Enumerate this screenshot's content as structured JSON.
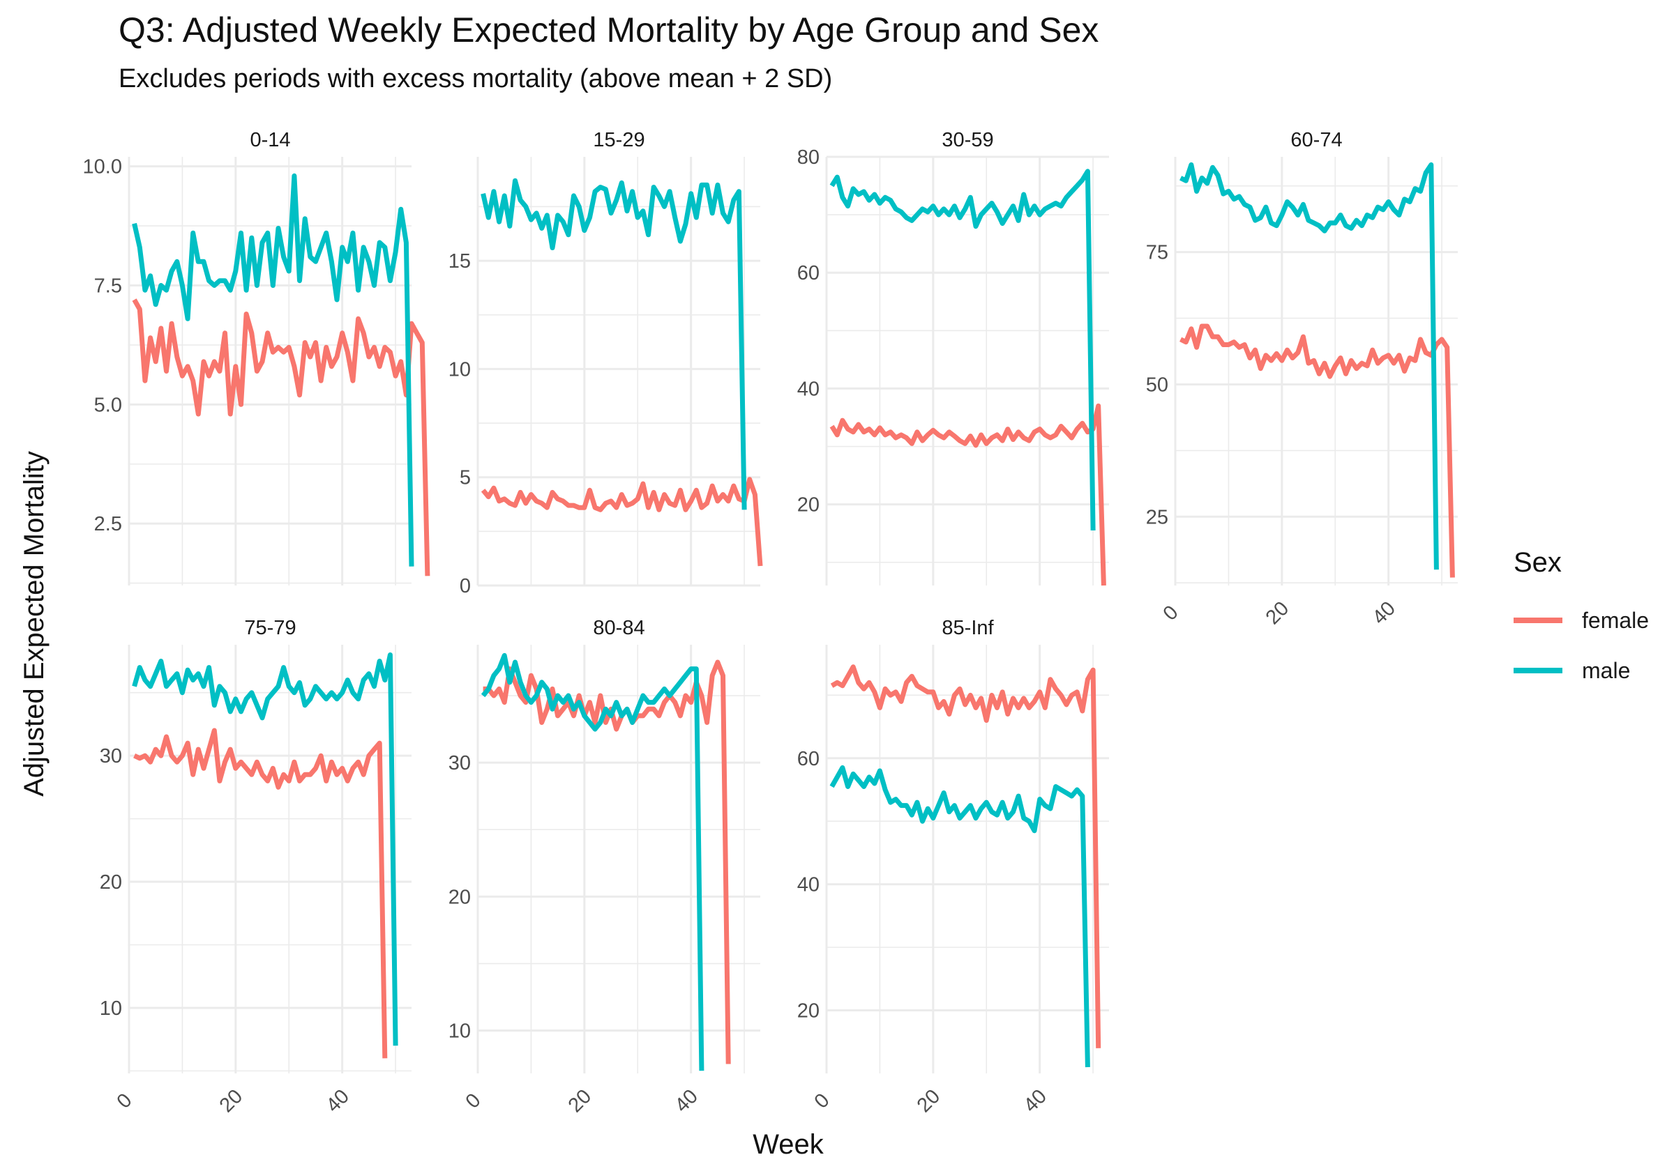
{
  "title": "Q3: Adjusted Weekly Expected Mortality by Age Group and Sex",
  "subtitle": "Excludes periods with excess mortality (above mean + 2 SD)",
  "colors": {
    "female": "#F8766D",
    "male": "#00BFC4",
    "grid": "#EBEBEB"
  },
  "chart_data": {
    "type": "line",
    "facet_by": "Age group",
    "xlabel": "Week",
    "ylabel": "Adjusted Expected Mortality",
    "xlim": [
      0,
      53
    ],
    "xticks": [
      "0",
      "20",
      "40"
    ],
    "legend": {
      "title": "Sex",
      "position": "right",
      "entries": [
        "female",
        "male"
      ]
    },
    "grid": true,
    "panels": [
      {
        "label": "0-14",
        "ylim": [
          1.2,
          10.2
        ],
        "yticks": [
          "2.5",
          "5.0",
          "7.5",
          "10.0"
        ],
        "series": [
          {
            "name": "female",
            "x0": 1,
            "values": [
              7.2,
              7.0,
              5.5,
              6.4,
              5.9,
              6.6,
              5.7,
              6.7,
              6.0,
              5.6,
              5.8,
              5.5,
              4.8,
              5.9,
              5.6,
              5.9,
              5.7,
              6.5,
              4.8,
              5.8,
              5.0,
              6.9,
              6.5,
              5.7,
              5.9,
              6.5,
              6.1,
              6.2,
              6.1,
              6.2,
              5.8,
              5.2,
              6.3,
              6.0,
              6.3,
              5.5,
              6.2,
              5.8,
              6.0,
              6.5,
              6.1,
              5.5,
              6.8,
              6.5,
              6.0,
              6.2,
              5.8,
              6.2,
              6.1,
              5.6,
              5.9,
              5.2,
              6.7,
              6.5,
              6.3,
              1.4
            ]
          },
          {
            "name": "male",
            "x0": 1,
            "values": [
              8.8,
              8.3,
              7.4,
              7.7,
              7.1,
              7.5,
              7.4,
              7.8,
              8.0,
              7.5,
              6.8,
              8.6,
              8.0,
              8.0,
              7.6,
              7.5,
              7.6,
              7.6,
              7.4,
              7.8,
              8.6,
              7.4,
              8.5,
              7.5,
              8.4,
              8.6,
              7.5,
              8.7,
              8.1,
              7.8,
              9.8,
              7.6,
              8.9,
              8.1,
              8.0,
              8.3,
              8.6,
              8.0,
              7.2,
              8.3,
              8.0,
              8.6,
              7.4,
              8.3,
              8.0,
              7.5,
              8.4,
              8.3,
              7.6,
              8.2,
              9.1,
              8.4,
              1.6
            ]
          }
        ]
      },
      {
        "label": "15-29",
        "ylim": [
          0,
          19.8
        ],
        "yticks": [
          "0",
          "5",
          "10",
          "15"
        ],
        "series": [
          {
            "name": "female",
            "x0": 1,
            "values": [
              4.4,
              4.1,
              4.5,
              3.9,
              4.0,
              3.8,
              3.7,
              4.3,
              3.8,
              4.2,
              3.9,
              3.8,
              3.6,
              4.3,
              4.0,
              3.9,
              3.7,
              3.7,
              3.6,
              3.6,
              4.4,
              3.6,
              3.5,
              3.8,
              3.9,
              3.6,
              4.2,
              3.7,
              3.8,
              4.0,
              4.7,
              3.6,
              4.3,
              3.5,
              4.2,
              3.8,
              3.7,
              4.4,
              3.5,
              3.9,
              4.4,
              3.6,
              3.8,
              4.6,
              3.9,
              4.2,
              3.9,
              4.6,
              4.0,
              3.9,
              4.9,
              4.2,
              0.9
            ]
          },
          {
            "name": "male",
            "x0": 1,
            "values": [
              18.1,
              17.0,
              18.2,
              16.8,
              18.0,
              16.6,
              18.7,
              17.8,
              17.5,
              16.9,
              17.2,
              16.5,
              17.1,
              15.6,
              17.1,
              16.8,
              16.2,
              18.0,
              17.5,
              16.4,
              17.0,
              18.2,
              18.4,
              18.3,
              17.2,
              17.8,
              18.6,
              17.3,
              18.2,
              17.0,
              17.3,
              16.2,
              18.4,
              18.0,
              17.5,
              18.2,
              17.0,
              15.9,
              16.7,
              18.1,
              17.0,
              18.5,
              18.5,
              17.2,
              18.5,
              17.2,
              16.8,
              17.8,
              18.2,
              3.5
            ]
          }
        ]
      },
      {
        "label": "30-59",
        "ylim": [
          6,
          80
        ],
        "yticks": [
          "20",
          "40",
          "60",
          "80"
        ],
        "series": [
          {
            "name": "female",
            "x0": 1,
            "values": [
              33.5,
              32.0,
              34.5,
              33.0,
              32.5,
              33.8,
              32.5,
              33.0,
              32.0,
              33.2,
              32.0,
              32.5,
              31.5,
              32.0,
              31.5,
              30.5,
              32.5,
              31.0,
              32.0,
              32.8,
              32.0,
              31.5,
              32.5,
              31.8,
              31.0,
              30.5,
              31.8,
              30.2,
              32.0,
              30.5,
              31.5,
              32.0,
              31.0,
              33.0,
              31.2,
              32.5,
              31.5,
              31.0,
              32.5,
              33.0,
              32.0,
              31.5,
              32.0,
              33.5,
              32.5,
              31.5,
              33.0,
              34.0,
              32.5,
              33.0,
              37.0,
              6.0
            ]
          },
          {
            "name": "male",
            "x0": 1,
            "values": [
              75.0,
              76.5,
              73.0,
              71.5,
              74.5,
              73.5,
              74.0,
              72.5,
              73.5,
              72.0,
              73.0,
              72.5,
              71.0,
              70.5,
              69.5,
              69.0,
              70.0,
              71.0,
              70.5,
              71.5,
              70.0,
              71.0,
              70.0,
              71.5,
              69.5,
              71.0,
              73.0,
              68.0,
              70.0,
              71.0,
              72.0,
              70.5,
              68.5,
              70.0,
              71.5,
              69.0,
              73.5,
              70.0,
              71.5,
              70.0,
              71.0,
              71.5,
              72.0,
              71.5,
              73.0,
              74.0,
              75.0,
              76.0,
              77.5,
              15.5
            ]
          }
        ]
      },
      {
        "label": "60-74",
        "ylim": [
          12,
          93
        ],
        "yticks": [
          "25",
          "50",
          "75"
        ],
        "series": [
          {
            "name": "female",
            "x0": 1,
            "values": [
              58.5,
              58.0,
              60.5,
              57.0,
              61.0,
              61.0,
              59.0,
              59.0,
              57.5,
              57.5,
              58.0,
              57.0,
              57.5,
              55.0,
              56.5,
              53.0,
              55.5,
              54.5,
              55.8,
              54.5,
              56.5,
              55.0,
              56.0,
              59.0,
              54.0,
              54.5,
              52.0,
              54.0,
              51.5,
              53.5,
              55.0,
              52.0,
              54.5,
              53.0,
              54.0,
              53.5,
              56.5,
              54.0,
              55.0,
              55.5,
              54.0,
              55.5,
              52.5,
              55.0,
              54.5,
              58.5,
              56.0,
              55.5,
              57.5,
              58.5,
              57.0,
              13.5
            ]
          },
          {
            "name": "male",
            "x0": 1,
            "values": [
              89.0,
              88.5,
              91.5,
              86.5,
              89.0,
              88.0,
              91.0,
              89.5,
              86.0,
              86.5,
              85.0,
              85.5,
              84.0,
              83.5,
              81.0,
              81.5,
              83.5,
              80.5,
              80.0,
              82.0,
              84.5,
              83.5,
              82.0,
              84.0,
              81.0,
              80.5,
              80.0,
              79.0,
              80.5,
              80.5,
              82.0,
              80.0,
              79.5,
              81.0,
              80.0,
              82.0,
              81.5,
              83.5,
              83.0,
              84.5,
              83.0,
              82.0,
              85.0,
              84.5,
              87.0,
              86.5,
              90.0,
              91.5,
              15.0
            ]
          }
        ]
      },
      {
        "label": "75-79",
        "ylim": [
          4.8,
          38.8
        ],
        "yticks": [
          "10",
          "20",
          "30"
        ],
        "series": [
          {
            "name": "female",
            "x0": 1,
            "values": [
              30.0,
              29.8,
              30.0,
              29.5,
              30.5,
              30.0,
              31.5,
              30.0,
              29.5,
              30.0,
              31.0,
              28.5,
              30.5,
              29.0,
              30.5,
              32.0,
              28.0,
              29.5,
              30.5,
              29.0,
              29.5,
              29.0,
              28.5,
              29.5,
              28.5,
              28.0,
              29.0,
              27.5,
              28.5,
              28.0,
              29.5,
              28.0,
              28.5,
              28.5,
              29.0,
              30.0,
              28.0,
              29.5,
              28.5,
              29.0,
              28.0,
              29.0,
              29.5,
              28.5,
              30.0,
              30.5,
              31.0,
              6.0
            ]
          },
          {
            "name": "male",
            "x0": 1,
            "values": [
              35.5,
              37.0,
              36.0,
              35.5,
              36.5,
              37.5,
              35.5,
              36.0,
              36.5,
              35.0,
              36.8,
              36.0,
              36.5,
              35.5,
              37.0,
              34.0,
              35.5,
              35.0,
              33.5,
              34.5,
              33.5,
              34.5,
              35.0,
              34.0,
              33.0,
              34.5,
              35.0,
              35.5,
              37.0,
              35.5,
              35.0,
              35.8,
              34.0,
              34.5,
              35.5,
              35.0,
              34.5,
              35.0,
              34.5,
              35.0,
              36.0,
              35.0,
              34.5,
              36.0,
              36.5,
              35.5,
              37.5,
              36.0,
              38.0,
              7.0
            ]
          }
        ]
      },
      {
        "label": "80-84",
        "ylim": [
          6.8,
          38.8
        ],
        "yticks": [
          "10",
          "20",
          "30"
        ],
        "series": [
          {
            "name": "female",
            "x0": 1,
            "values": [
              35.5,
              35.5,
              35.0,
              35.5,
              34.5,
              37.0,
              36.0,
              35.0,
              34.5,
              36.5,
              35.5,
              33.0,
              34.0,
              35.5,
              33.5,
              34.0,
              34.5,
              33.5,
              35.0,
              33.5,
              34.5,
              33.0,
              35.0,
              33.0,
              34.0,
              32.5,
              33.5,
              34.0,
              33.0,
              33.5,
              33.5,
              34.0,
              34.0,
              33.5,
              34.5,
              35.0,
              34.5,
              33.5,
              35.0,
              34.5,
              36.0,
              35.0,
              33.0,
              36.5,
              37.5,
              36.5,
              7.5
            ]
          },
          {
            "name": "male",
            "x0": 1,
            "values": [
              35.0,
              35.5,
              36.5,
              37.0,
              38.0,
              36.0,
              37.5,
              36.0,
              35.0,
              34.5,
              35.0,
              36.0,
              35.5,
              34.0,
              35.0,
              34.5,
              35.0,
              34.0,
              34.5,
              33.5,
              33.0,
              32.5,
              33.0,
              34.0,
              33.5,
              34.5,
              33.5,
              34.0,
              33.0,
              34.0,
              35.0,
              34.5,
              34.5,
              35.0,
              35.5,
              35.0,
              35.5,
              36.0,
              36.5,
              37.0,
              37.0,
              7.0
            ]
          }
        ]
      },
      {
        "label": "85-Inf",
        "ylim": [
          10,
          78
        ],
        "yticks": [
          "20",
          "40",
          "60"
        ],
        "series": [
          {
            "name": "female",
            "x0": 1,
            "values": [
              71.5,
              72.0,
              71.5,
              73.0,
              74.5,
              72.0,
              71.0,
              72.0,
              70.5,
              68.0,
              71.0,
              70.0,
              70.5,
              69.0,
              72.0,
              73.0,
              71.5,
              71.0,
              70.5,
              70.5,
              68.0,
              69.0,
              67.0,
              70.0,
              71.0,
              68.5,
              70.0,
              68.0,
              69.5,
              66.0,
              70.0,
              68.0,
              70.5,
              67.0,
              69.5,
              68.0,
              69.5,
              68.0,
              69.0,
              70.5,
              68.0,
              72.5,
              71.0,
              70.0,
              68.5,
              70.0,
              70.5,
              67.5,
              72.5,
              74.0,
              14.0
            ]
          },
          {
            "name": "male",
            "x0": 1,
            "values": [
              55.5,
              57.0,
              58.5,
              55.5,
              57.5,
              56.5,
              55.5,
              57.0,
              56.0,
              58.0,
              55.0,
              53.0,
              53.5,
              52.5,
              52.5,
              51.0,
              53.0,
              50.0,
              52.0,
              50.5,
              52.5,
              54.5,
              51.5,
              52.5,
              50.5,
              51.5,
              52.5,
              50.5,
              52.0,
              53.0,
              51.5,
              51.0,
              53.0,
              50.5,
              51.5,
              54.0,
              50.5,
              50.0,
              48.5,
              53.5,
              52.5,
              52.0,
              55.5,
              55.0,
              54.5,
              54.0,
              55.0,
              54.0,
              11.0
            ]
          }
        ]
      }
    ]
  }
}
